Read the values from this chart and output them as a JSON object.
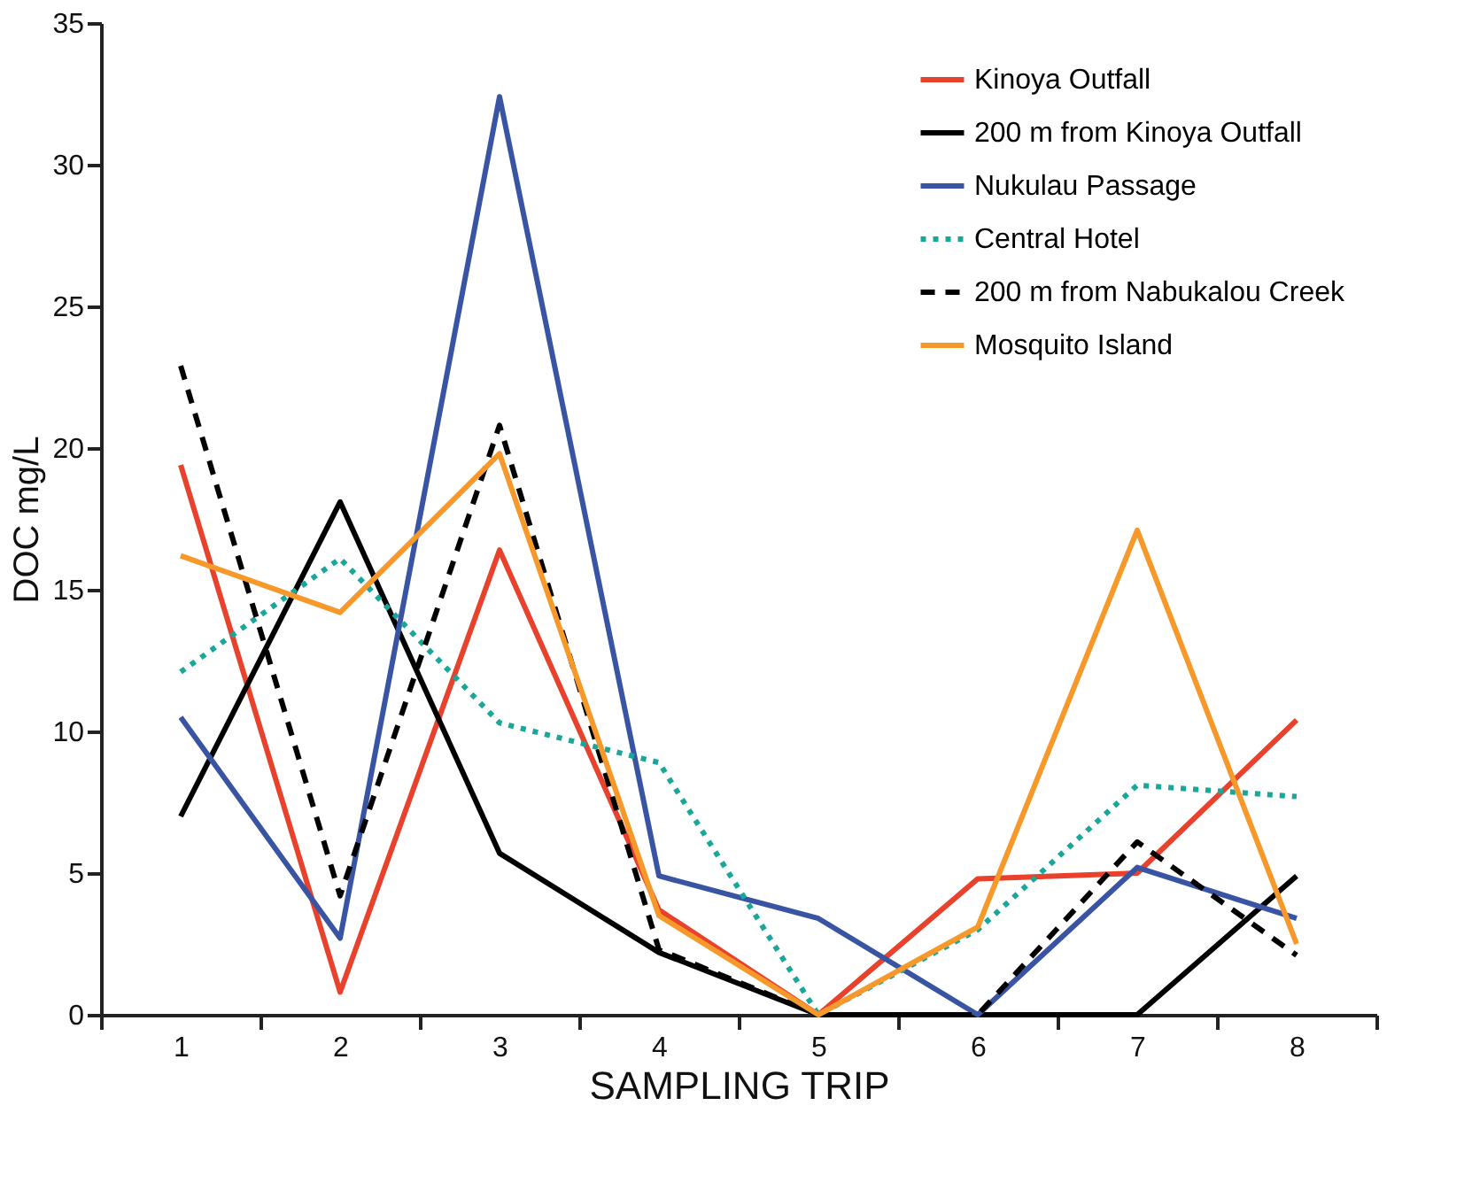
{
  "chart_data": {
    "type": "line",
    "xlabel": "SAMPLING TRIP",
    "ylabel": "DOC mg/L",
    "categories": [
      "1",
      "2",
      "3",
      "4",
      "5",
      "6",
      "7",
      "8"
    ],
    "ylim": [
      0,
      35
    ],
    "yticks": [
      0,
      5,
      10,
      15,
      20,
      25,
      30,
      35
    ],
    "grid": false,
    "legend": "top right",
    "marker": "none",
    "series": [
      {
        "name": "Kinoya Outfall",
        "color": "#e8412c",
        "line_style": "solid",
        "values": [
          19.4,
          0.8,
          16.4,
          3.7,
          0,
          4.8,
          5.0,
          10.4
        ]
      },
      {
        "name": "200 m from Kinoya Outfall",
        "color": "#000000",
        "line_style": "solid",
        "values": [
          7.0,
          18.1,
          5.7,
          2.2,
          0,
          0,
          0,
          4.9
        ]
      },
      {
        "name": "Nukulau Passage",
        "color": "#3a54a4",
        "line_style": "solid",
        "values": [
          10.5,
          2.7,
          32.4,
          4.9,
          3.4,
          0,
          5.2,
          3.4
        ]
      },
      {
        "name": "Central Hotel",
        "color": "#1aa79a",
        "line_style": "dotted",
        "values": [
          12.1,
          16.1,
          10.3,
          8.9,
          0,
          3.0,
          8.1,
          7.7
        ]
      },
      {
        "name": "200 m from Nabukalou Creek",
        "color": "#000000",
        "line_style": "dashed",
        "values": [
          22.9,
          4.2,
          20.8,
          2.3,
          0,
          0,
          6.1,
          2.1
        ]
      },
      {
        "name": "Mosquito Island",
        "color": "#f7982a",
        "line_style": "solid",
        "values": [
          16.2,
          14.2,
          19.8,
          3.5,
          0,
          3.1,
          17.1,
          2.5
        ]
      }
    ]
  }
}
